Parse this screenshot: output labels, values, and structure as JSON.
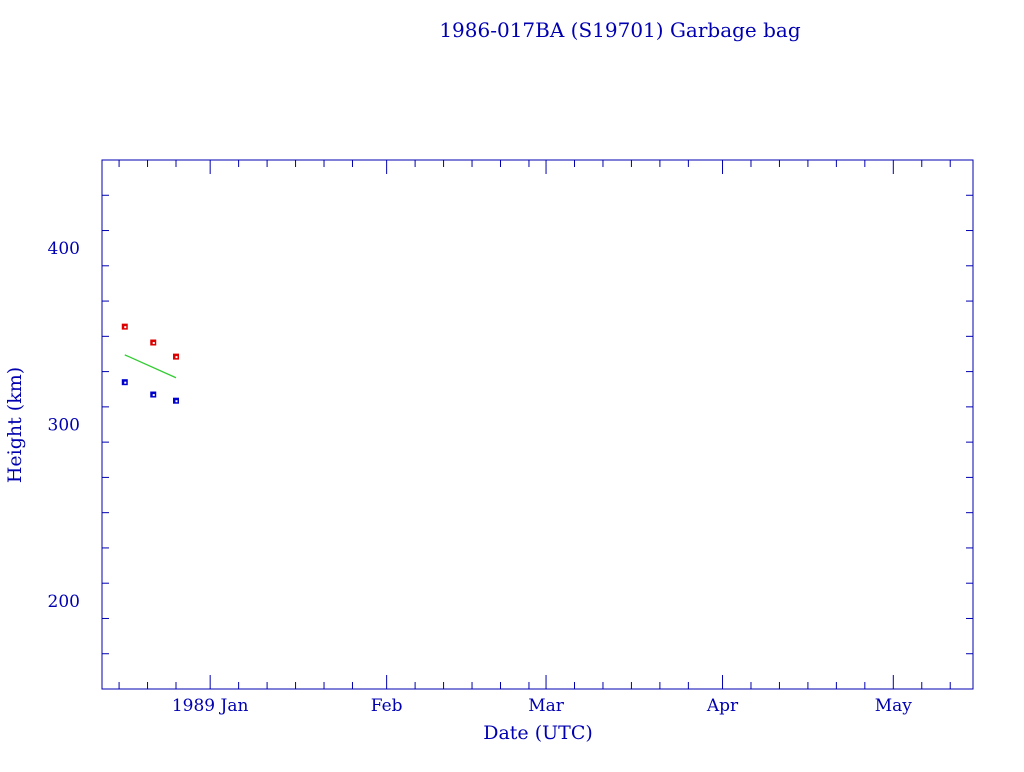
{
  "chart_data": {
    "type": "scatter",
    "title": "1986-017BA (S19701) Garbage bag",
    "xlabel": "Date (UTC)",
    "ylabel": "Height (km)",
    "xlim": [
      "1988-12-13",
      "1989-05-15"
    ],
    "ylim": [
      150,
      450
    ],
    "y_ticks": [
      200,
      300,
      400
    ],
    "x_ticks": [
      {
        "date": "1989-01-01",
        "label": "1989 Jan"
      },
      {
        "date": "1989-02-01",
        "label": "Feb"
      },
      {
        "date": "1989-03-01",
        "label": "Mar"
      },
      {
        "date": "1989-04-01",
        "label": "Apr"
      },
      {
        "date": "1989-05-01",
        "label": "May"
      }
    ],
    "grid": false,
    "series": [
      {
        "kind": "points",
        "color": "#dd0000",
        "x": [
          "1988-12-17",
          "1988-12-22",
          "1988-12-26"
        ],
        "y": [
          355.5,
          346.5,
          338.5
        ]
      },
      {
        "kind": "points",
        "color": "#0000cc",
        "x": [
          "1988-12-17",
          "1988-12-22",
          "1988-12-26"
        ],
        "y": [
          324,
          317,
          313.5
        ]
      },
      {
        "kind": "line",
        "color": "#33cc33",
        "x": [
          "1988-12-17",
          "1988-12-26"
        ],
        "y": [
          339.5,
          326.5
        ]
      }
    ],
    "axis_color": "#0000b0"
  }
}
